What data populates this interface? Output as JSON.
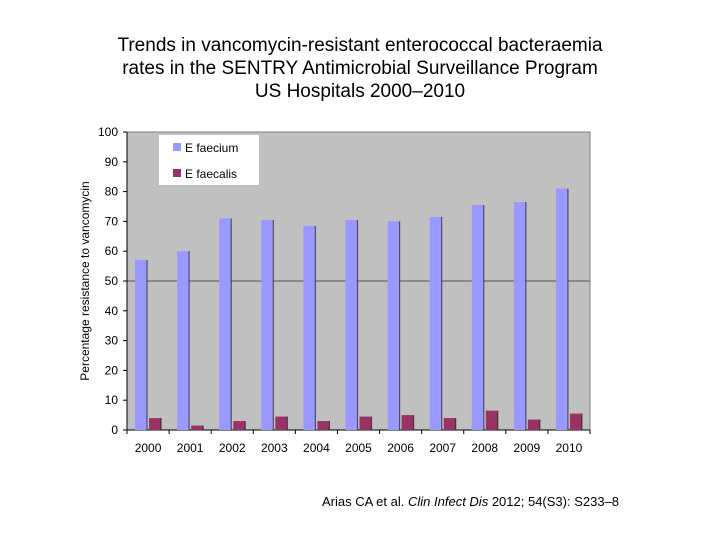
{
  "title_lines": [
    "Trends in vancomycin-resistant enterococcal bacteraemia",
    "rates in the SENTRY Antimicrobial Surveillance Program",
    "US Hospitals 2000–2010"
  ],
  "citation": {
    "authors": "Arias CA et al.",
    "journal": "Clin Infect Dis",
    "details": "2012; 54(S3): S233–8"
  },
  "colors": {
    "plot_background": "#c0c0c0",
    "faecium": "#9999ff",
    "faecalis": "#993366",
    "gridline": "#555555"
  },
  "chart_data": {
    "type": "bar",
    "title": "",
    "xlabel": "",
    "ylabel": "Percentage resistance to vancomycin",
    "ylim": [
      0,
      100
    ],
    "yticks": [
      0,
      10,
      20,
      30,
      40,
      50,
      60,
      70,
      80,
      90,
      100
    ],
    "gridlines": [
      50
    ],
    "legend_position": "top-left",
    "categories": [
      "2000",
      "2001",
      "2002",
      "2003",
      "2004",
      "2005",
      "2006",
      "2007",
      "2008",
      "2009",
      "2010"
    ],
    "series": [
      {
        "name": "E faecium",
        "values": [
          57,
          60,
          71,
          70.5,
          68.5,
          70.5,
          70,
          71.5,
          75.5,
          76.5,
          81
        ]
      },
      {
        "name": "E faecalis",
        "values": [
          4,
          1.5,
          3,
          4.5,
          3,
          4.5,
          5,
          4,
          6.5,
          3.5,
          5.5
        ]
      }
    ]
  }
}
